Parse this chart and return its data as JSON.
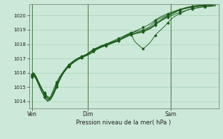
{
  "xlabel": "Pression niveau de la mer( hPa )",
  "bg_color": "#cce8d8",
  "grid_color": "#99ccaa",
  "line_color": "#1a5c1a",
  "vline_color": "#336633",
  "ylim": [
    1013.5,
    1020.8
  ],
  "yticks": [
    1014,
    1015,
    1016,
    1017,
    1018,
    1019,
    1020
  ],
  "day_labels": [
    "Ven",
    "Dim",
    "Sam"
  ],
  "day_positions": [
    0,
    36,
    90
  ],
  "total_points": 120,
  "series": [
    [
      1015.8,
      1015.9,
      1015.75,
      1015.55,
      1015.3,
      1015.1,
      1014.9,
      1014.7,
      1014.5,
      1014.3,
      1014.15,
      1014.05,
      1014.1,
      1014.3,
      1014.55,
      1014.8,
      1015.05,
      1015.3,
      1015.55,
      1015.75,
      1015.95,
      1016.1,
      1016.25,
      1016.4,
      1016.5,
      1016.6,
      1016.7,
      1016.8,
      1016.88,
      1016.95,
      1017.0,
      1017.05,
      1017.1,
      1017.15,
      1017.2,
      1017.25,
      1017.32,
      1017.4,
      1017.48,
      1017.55,
      1017.6,
      1017.65,
      1017.7,
      1017.75,
      1017.8,
      1017.85,
      1017.9,
      1017.95,
      1018.0,
      1018.05,
      1018.1,
      1018.15,
      1018.2,
      1018.25,
      1018.3,
      1018.35,
      1018.4,
      1018.45,
      1018.5,
      1018.55,
      1018.6,
      1018.65,
      1018.7,
      1018.75,
      1018.8,
      1018.82,
      1018.85,
      1018.88,
      1018.9,
      1018.93,
      1018.95,
      1018.98,
      1019.0,
      1019.05,
      1019.1,
      1019.15,
      1019.2,
      1019.3,
      1019.4,
      1019.5,
      1019.6,
      1019.7,
      1019.75,
      1019.8,
      1019.85,
      1019.9,
      1019.95,
      1020.0,
      1020.05,
      1020.1,
      1020.15,
      1020.2,
      1020.25,
      1020.3,
      1020.35,
      1020.4,
      1020.42,
      1020.44,
      1020.46,
      1020.48,
      1020.5,
      1020.52,
      1020.54,
      1020.56,
      1020.58,
      1020.6,
      1020.62,
      1020.64,
      1020.65,
      1020.66,
      1020.67,
      1020.68,
      1020.69,
      1020.7,
      1020.71,
      1020.72,
      1020.73,
      1020.74,
      1020.75,
      1020.76
    ],
    [
      1015.75,
      1015.85,
      1015.7,
      1015.5,
      1015.25,
      1015.0,
      1014.75,
      1014.55,
      1014.35,
      1014.15,
      1014.0,
      1014.05,
      1014.2,
      1014.45,
      1014.7,
      1014.95,
      1015.2,
      1015.45,
      1015.65,
      1015.85,
      1016.0,
      1016.15,
      1016.3,
      1016.45,
      1016.55,
      1016.65,
      1016.75,
      1016.83,
      1016.9,
      1016.97,
      1017.03,
      1017.08,
      1017.13,
      1017.18,
      1017.23,
      1017.28,
      1017.35,
      1017.42,
      1017.5,
      1017.58,
      1017.65,
      1017.7,
      1017.75,
      1017.8,
      1017.85,
      1017.9,
      1017.93,
      1017.97,
      1018.0,
      1018.03,
      1018.07,
      1018.1,
      1018.13,
      1018.17,
      1018.2,
      1018.23,
      1018.27,
      1018.3,
      1018.35,
      1018.4,
      1018.45,
      1018.5,
      1018.55,
      1018.6,
      1018.65,
      1018.68,
      1018.7,
      1018.73,
      1018.75,
      1018.78,
      1018.8,
      1018.83,
      1018.86,
      1018.9,
      1018.95,
      1019.0,
      1019.05,
      1019.1,
      1019.18,
      1019.26,
      1019.35,
      1019.45,
      1019.52,
      1019.6,
      1019.68,
      1019.75,
      1019.82,
      1019.9,
      1019.96,
      1020.02,
      1020.08,
      1020.14,
      1020.2,
      1020.26,
      1020.32,
      1020.38,
      1020.42,
      1020.46,
      1020.5,
      1020.54,
      1020.57,
      1020.6,
      1020.62,
      1020.64,
      1020.66,
      1020.68,
      1020.7,
      1020.71,
      1020.72,
      1020.73,
      1020.74,
      1020.75,
      1020.76,
      1020.77,
      1020.78,
      1020.79,
      1020.8,
      1020.81,
      1020.82,
      1020.83
    ],
    [
      1015.7,
      1015.8,
      1015.65,
      1015.45,
      1015.2,
      1014.95,
      1014.7,
      1014.5,
      1014.3,
      1014.1,
      1014.05,
      1014.15,
      1014.35,
      1014.6,
      1014.85,
      1015.1,
      1015.35,
      1015.55,
      1015.75,
      1015.9,
      1016.05,
      1016.2,
      1016.33,
      1016.46,
      1016.57,
      1016.67,
      1016.76,
      1016.84,
      1016.91,
      1016.97,
      1017.03,
      1017.08,
      1017.13,
      1017.18,
      1017.22,
      1017.27,
      1017.33,
      1017.4,
      1017.47,
      1017.55,
      1017.62,
      1017.68,
      1017.73,
      1017.78,
      1017.83,
      1017.88,
      1017.92,
      1017.96,
      1018.0,
      1018.04,
      1018.08,
      1018.12,
      1018.16,
      1018.2,
      1018.24,
      1018.28,
      1018.32,
      1018.37,
      1018.42,
      1018.47,
      1018.52,
      1018.57,
      1018.62,
      1018.67,
      1018.72,
      1018.75,
      1018.77,
      1018.8,
      1018.82,
      1018.85,
      1018.87,
      1018.9,
      1018.93,
      1018.97,
      1019.02,
      1019.07,
      1019.12,
      1019.18,
      1019.26,
      1019.35,
      1019.44,
      1019.53,
      1019.6,
      1019.67,
      1019.74,
      1019.81,
      1019.87,
      1019.93,
      1019.98,
      1020.03,
      1020.08,
      1020.13,
      1020.18,
      1020.23,
      1020.28,
      1020.33,
      1020.37,
      1020.41,
      1020.45,
      1020.49,
      1020.52,
      1020.55,
      1020.58,
      1020.61,
      1020.63,
      1020.65,
      1020.67,
      1020.69,
      1020.7,
      1020.71,
      1020.72,
      1020.73,
      1020.74,
      1020.75,
      1020.76,
      1020.77,
      1020.78,
      1020.79,
      1020.8,
      1020.81
    ],
    [
      1015.85,
      1015.95,
      1015.8,
      1015.6,
      1015.38,
      1015.15,
      1014.92,
      1014.72,
      1014.52,
      1014.35,
      1014.22,
      1014.15,
      1014.2,
      1014.38,
      1014.62,
      1014.87,
      1015.12,
      1015.37,
      1015.58,
      1015.77,
      1015.93,
      1016.07,
      1016.2,
      1016.33,
      1016.44,
      1016.54,
      1016.63,
      1016.71,
      1016.79,
      1016.86,
      1016.93,
      1017.0,
      1017.06,
      1017.12,
      1017.17,
      1017.22,
      1017.28,
      1017.35,
      1017.42,
      1017.5,
      1017.57,
      1017.63,
      1017.68,
      1017.73,
      1017.78,
      1017.83,
      1017.87,
      1017.91,
      1017.95,
      1017.99,
      1018.03,
      1018.07,
      1018.11,
      1018.15,
      1018.19,
      1018.23,
      1018.27,
      1018.31,
      1018.35,
      1018.4,
      1018.45,
      1018.5,
      1018.55,
      1018.6,
      1018.65,
      1018.68,
      1018.71,
      1018.74,
      1018.77,
      1018.8,
      1018.83,
      1018.86,
      1018.89,
      1018.93,
      1018.97,
      1019.02,
      1019.07,
      1019.13,
      1019.2,
      1019.28,
      1019.36,
      1019.44,
      1019.51,
      1019.58,
      1019.65,
      1019.71,
      1019.77,
      1019.83,
      1019.88,
      1019.93,
      1019.98,
      1020.02,
      1020.07,
      1020.11,
      1020.15,
      1020.19,
      1020.23,
      1020.26,
      1020.3,
      1020.33,
      1020.36,
      1020.39,
      1020.42,
      1020.45,
      1020.47,
      1020.49,
      1020.51,
      1020.53,
      1020.55,
      1020.57,
      1020.59,
      1020.6,
      1020.61,
      1020.62,
      1020.63,
      1020.64,
      1020.65,
      1020.66,
      1020.67,
      1020.68
    ],
    [
      1015.9,
      1016.0,
      1015.85,
      1015.65,
      1015.4,
      1015.18,
      1014.96,
      1014.76,
      1014.58,
      1014.42,
      1014.3,
      1014.22,
      1014.2,
      1014.3,
      1014.5,
      1014.75,
      1015.0,
      1015.25,
      1015.5,
      1015.72,
      1015.9,
      1016.07,
      1016.22,
      1016.36,
      1016.47,
      1016.57,
      1016.67,
      1016.75,
      1016.82,
      1016.89,
      1016.95,
      1017.0,
      1017.05,
      1017.1,
      1017.14,
      1017.18,
      1017.22,
      1017.27,
      1017.33,
      1017.4,
      1017.47,
      1017.55,
      1017.62,
      1017.68,
      1017.73,
      1017.78,
      1017.82,
      1017.86,
      1017.9,
      1017.94,
      1017.98,
      1018.02,
      1018.06,
      1018.1,
      1018.14,
      1018.18,
      1018.25,
      1018.32,
      1018.4,
      1018.48,
      1018.55,
      1018.62,
      1018.68,
      1018.74,
      1018.8,
      1018.55,
      1018.3,
      1018.15,
      1018.05,
      1017.95,
      1017.85,
      1017.75,
      1017.7,
      1017.75,
      1017.85,
      1017.95,
      1018.05,
      1018.18,
      1018.32,
      1018.48,
      1018.62,
      1018.75,
      1018.85,
      1018.95,
      1019.05,
      1019.15,
      1019.25,
      1019.38,
      1019.5,
      1019.62,
      1019.72,
      1019.82,
      1019.9,
      1019.97,
      1020.03,
      1020.09,
      1020.15,
      1020.2,
      1020.25,
      1020.3,
      1020.35,
      1020.4,
      1020.43,
      1020.46,
      1020.49,
      1020.52,
      1020.54,
      1020.56,
      1020.58,
      1020.6,
      1020.61,
      1020.62,
      1020.63,
      1020.64,
      1020.65,
      1020.66,
      1020.67,
      1020.68,
      1020.69,
      1020.7
    ],
    [
      1015.9,
      1016.0,
      1015.85,
      1015.65,
      1015.42,
      1015.2,
      1014.98,
      1014.78,
      1014.6,
      1014.45,
      1014.35,
      1014.28,
      1014.25,
      1014.32,
      1014.52,
      1014.77,
      1015.02,
      1015.27,
      1015.5,
      1015.72,
      1015.9,
      1016.07,
      1016.22,
      1016.35,
      1016.46,
      1016.56,
      1016.65,
      1016.73,
      1016.8,
      1016.87,
      1016.93,
      1017.0,
      1017.05,
      1017.1,
      1017.15,
      1017.2,
      1017.26,
      1017.33,
      1017.4,
      1017.47,
      1017.54,
      1017.6,
      1017.65,
      1017.7,
      1017.75,
      1017.8,
      1017.84,
      1017.88,
      1017.92,
      1017.96,
      1018.0,
      1018.04,
      1018.08,
      1018.12,
      1018.16,
      1018.2,
      1018.24,
      1018.3,
      1018.37,
      1018.45,
      1018.52,
      1018.59,
      1018.65,
      1018.71,
      1018.77,
      1018.82,
      1018.87,
      1018.92,
      1018.97,
      1019.02,
      1019.07,
      1019.12,
      1019.17,
      1019.22,
      1019.27,
      1019.32,
      1019.38,
      1019.45,
      1019.53,
      1019.62,
      1019.7,
      1019.77,
      1019.83,
      1019.89,
      1019.94,
      1019.99,
      1020.04,
      1020.09,
      1020.14,
      1020.18,
      1020.22,
      1020.26,
      1020.3,
      1020.33,
      1020.37,
      1020.4,
      1020.43,
      1020.46,
      1020.49,
      1020.52,
      1020.54,
      1020.56,
      1020.58,
      1020.6,
      1020.62,
      1020.64,
      1020.65,
      1020.66,
      1020.67,
      1020.68,
      1020.69,
      1020.7,
      1020.71,
      1020.72,
      1020.73,
      1020.74,
      1020.75,
      1020.76,
      1020.77,
      1020.78
    ]
  ]
}
